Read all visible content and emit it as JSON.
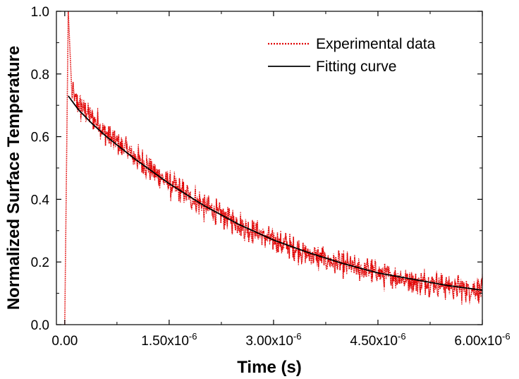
{
  "chart_data": {
    "type": "line",
    "title": "",
    "xlabel": "Time (s)",
    "ylabel": "Normalized Surface Temperature",
    "xlim": [
      -1.2e-07,
      6e-06
    ],
    "ylim": [
      0.0,
      1.0
    ],
    "x_ticks": [
      0,
      1.5e-06,
      3e-06,
      4.5e-06,
      6e-06
    ],
    "x_tick_labels": [
      {
        "base": "0.00",
        "exp": ""
      },
      {
        "base": "1.50x10",
        "exp": "-6"
      },
      {
        "base": "3.00x10",
        "exp": "-6"
      },
      {
        "base": "4.50x10",
        "exp": "-6"
      },
      {
        "base": "6.00x10",
        "exp": "-6"
      }
    ],
    "y_ticks": [
      0.0,
      0.2,
      0.4,
      0.6,
      0.8,
      1.0
    ],
    "y_tick_labels": [
      "0.0",
      "0.2",
      "0.4",
      "0.6",
      "0.8",
      "1.0"
    ],
    "grid": false,
    "legend_position": "top-right",
    "series": [
      {
        "name": "Experimental data",
        "color": "#e00000",
        "style": "dotted",
        "noisy": true,
        "x": [
          0,
          5e-08,
          1e-07,
          2e-07,
          4e-07,
          6e-07,
          8e-07,
          1e-06,
          1.5e-06,
          2e-06,
          2.5e-06,
          3e-06,
          3.5e-06,
          4e-06,
          4.5e-06,
          5e-06,
          5.5e-06,
          6e-06
        ],
        "y": [
          0.0,
          1.0,
          0.74,
          0.7,
          0.66,
          0.61,
          0.57,
          0.535,
          0.45,
          0.38,
          0.32,
          0.27,
          0.225,
          0.19,
          0.165,
          0.14,
          0.125,
          0.11
        ]
      },
      {
        "name": "Fitting curve",
        "color": "#000000",
        "style": "solid",
        "noisy": false,
        "x": [
          5e-08,
          1e-07,
          2e-07,
          4e-07,
          6e-07,
          8e-07,
          1e-06,
          1.5e-06,
          2e-06,
          2.5e-06,
          3e-06,
          3.5e-06,
          4e-06,
          4.5e-06,
          5e-06,
          5.5e-06,
          6e-06
        ],
        "y": [
          0.73,
          0.715,
          0.685,
          0.64,
          0.6,
          0.565,
          0.53,
          0.45,
          0.38,
          0.32,
          0.27,
          0.23,
          0.195,
          0.165,
          0.145,
          0.125,
          0.11
        ]
      }
    ]
  }
}
